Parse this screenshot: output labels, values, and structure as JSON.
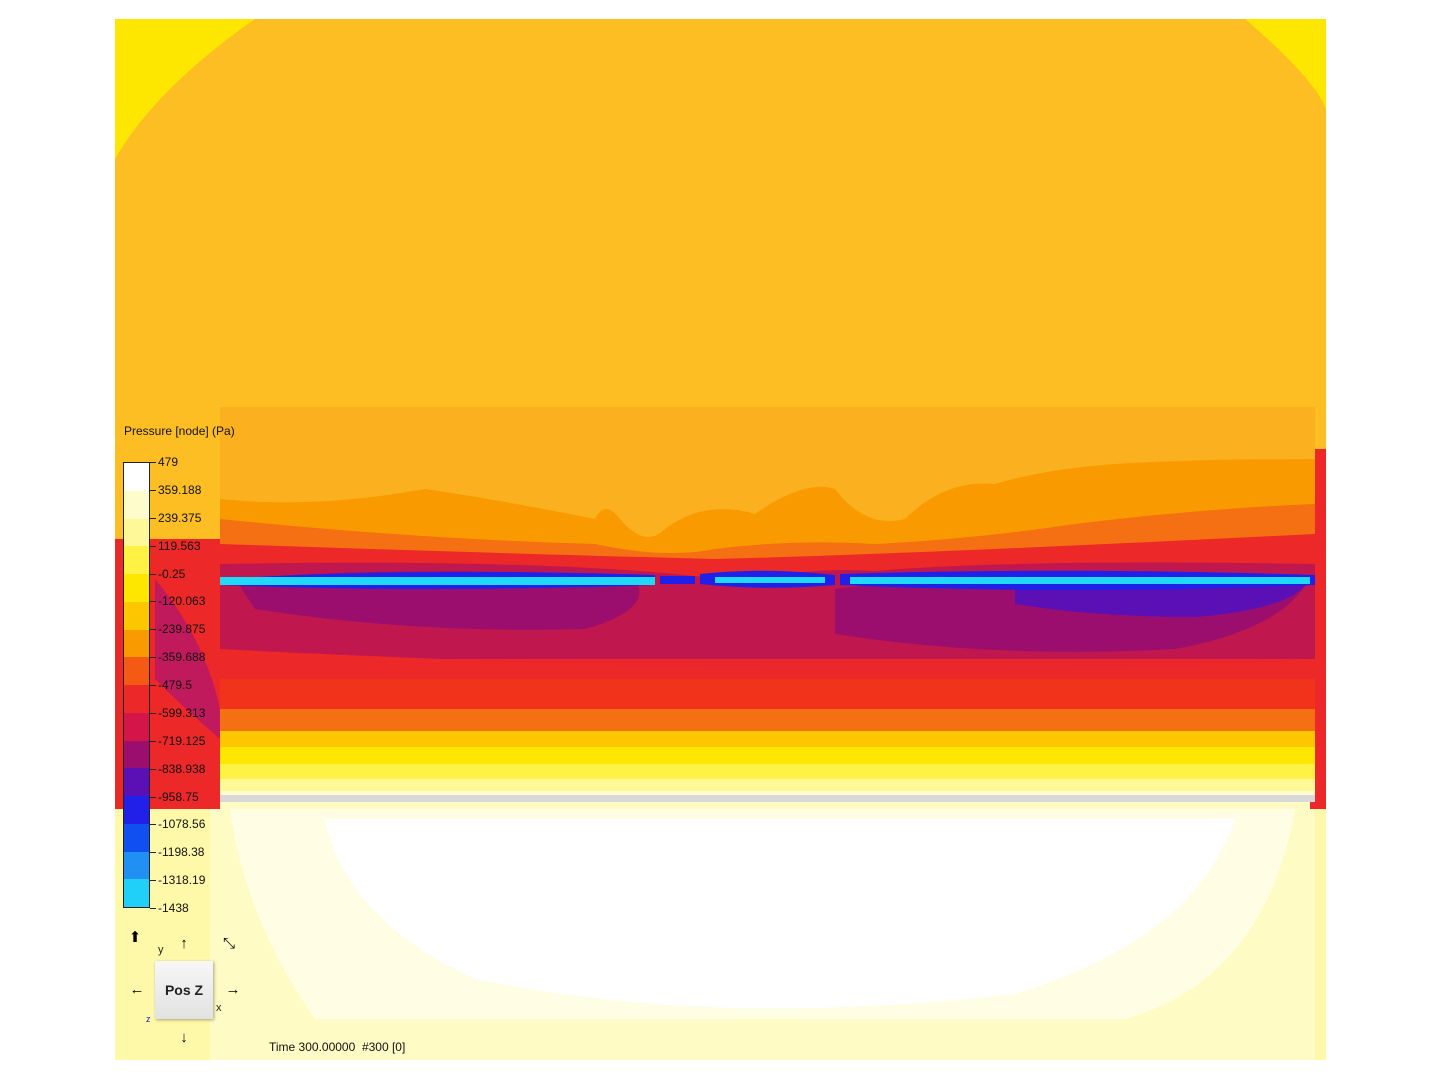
{
  "legend": {
    "title": "Pressure [node] (Pa)",
    "ticks": [
      "479",
      "359.188",
      "239.375",
      "119.563",
      "-0.25",
      "-120.063",
      "-239.875",
      "-359.688",
      "-479.5",
      "-599.313",
      "-719.125",
      "-838.938",
      "-958.75",
      "-1078.56",
      "-1198.38",
      "-1318.19",
      "-1438"
    ],
    "colors": [
      "#ffffff",
      "#fffccc",
      "#fff899",
      "#fff244",
      "#fde600",
      "#fdc700",
      "#f99a00",
      "#f45a14",
      "#ec2828",
      "#d4154a",
      "#9c0e6e",
      "#5a10b4",
      "#2020e8",
      "#1050f0",
      "#2090f4",
      "#20d0f8"
    ]
  },
  "navigator": {
    "cube_label": "Pos Z",
    "axis_y": "y",
    "axis_x": "x",
    "axis_z": "z",
    "arrow_up_icon": "⬆",
    "arrow_icon": "🡅"
  },
  "status": {
    "text": "Time 300.00000  #300 [0]"
  },
  "colors": {
    "background_field": "#fcbe22",
    "upper_band": "#fbb020",
    "jet_core": "#20d8f8",
    "lower_field": "#fffde0"
  }
}
